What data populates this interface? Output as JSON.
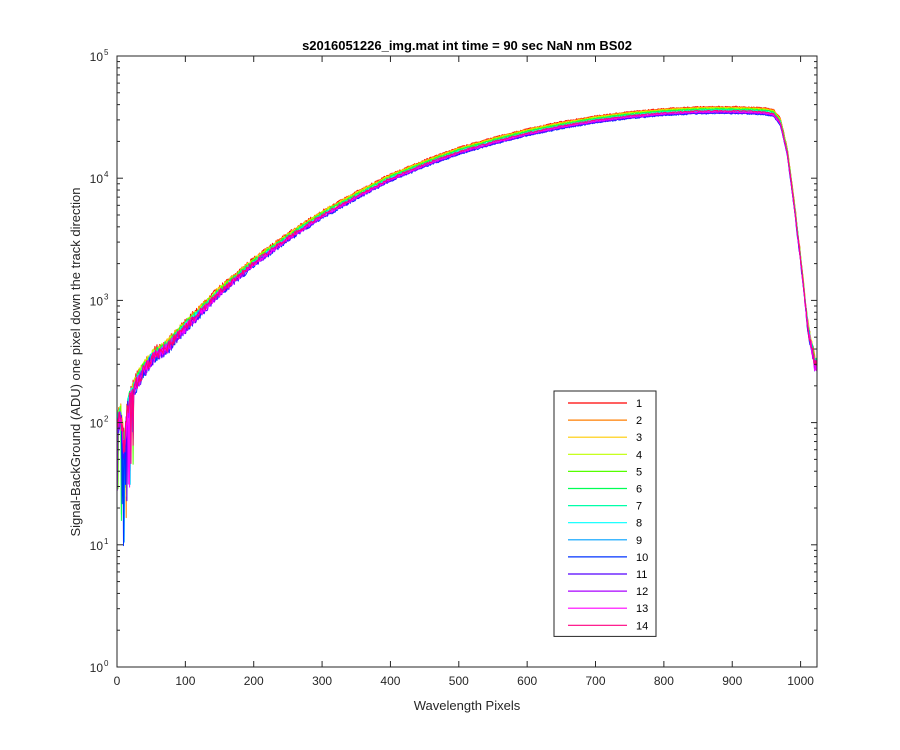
{
  "chart_data": {
    "type": "line",
    "title": "s2016051226_img.mat int time = 90 sec  NaN nm BS02",
    "xlabel": "Wavelength Pixels",
    "ylabel": "Signal-BackGround (ADU) one pixel down the track direction",
    "xlim": [
      0,
      1024
    ],
    "ylim": [
      1,
      100000
    ],
    "yscale": "log",
    "grid": false,
    "legend_position": "inside-bottom-right",
    "x_ticks": [
      0,
      100,
      200,
      300,
      400,
      500,
      600,
      700,
      800,
      900,
      1000
    ],
    "y_ticks": [
      {
        "value": 1,
        "base": "10",
        "exp": "0"
      },
      {
        "value": 10,
        "base": "10",
        "exp": "1"
      },
      {
        "value": 100,
        "base": "10",
        "exp": "2"
      },
      {
        "value": 1000,
        "base": "10",
        "exp": "3"
      },
      {
        "value": 10000,
        "base": "10",
        "exp": "4"
      },
      {
        "value": 100000,
        "base": "10",
        "exp": "5"
      }
    ],
    "x": [
      0,
      5,
      10,
      15,
      20,
      30,
      50,
      75,
      100,
      150,
      200,
      250,
      300,
      350,
      400,
      450,
      500,
      550,
      600,
      650,
      700,
      750,
      800,
      850,
      880,
      900,
      930,
      950,
      960,
      970,
      980,
      990,
      1000,
      1010,
      1020,
      1024
    ],
    "profile": [
      100,
      110,
      60,
      130,
      160,
      220,
      330,
      420,
      600,
      1150,
      2000,
      3200,
      4900,
      7000,
      9800,
      12800,
      16200,
      19500,
      23000,
      26300,
      29300,
      31800,
      33700,
      34800,
      35000,
      34900,
      34600,
      34000,
      33000,
      28000,
      16000,
      6000,
      2000,
      600,
      300,
      280
    ],
    "series": [
      {
        "name": "1",
        "color": "#ff0000",
        "scale": 1.1
      },
      {
        "name": "2",
        "color": "#ff7f00",
        "scale": 1.09
      },
      {
        "name": "3",
        "color": "#ffcc00",
        "scale": 1.08
      },
      {
        "name": "4",
        "color": "#bfff00",
        "scale": 1.07
      },
      {
        "name": "5",
        "color": "#55ff00",
        "scale": 1.06
      },
      {
        "name": "6",
        "color": "#00ff55",
        "scale": 1.05
      },
      {
        "name": "7",
        "color": "#00ffaa",
        "scale": 1.03
      },
      {
        "name": "8",
        "color": "#00ffff",
        "scale": 1.02
      },
      {
        "name": "9",
        "color": "#00a0ff",
        "scale": 1.0
      },
      {
        "name": "10",
        "color": "#0033ff",
        "scale": 0.97
      },
      {
        "name": "11",
        "color": "#5500ff",
        "scale": 0.98
      },
      {
        "name": "12",
        "color": "#aa00ff",
        "scale": 0.99
      },
      {
        "name": "13",
        "color": "#ff00ff",
        "scale": 1.0
      },
      {
        "name": "14",
        "color": "#ff0080",
        "scale": 1.02
      }
    ]
  }
}
